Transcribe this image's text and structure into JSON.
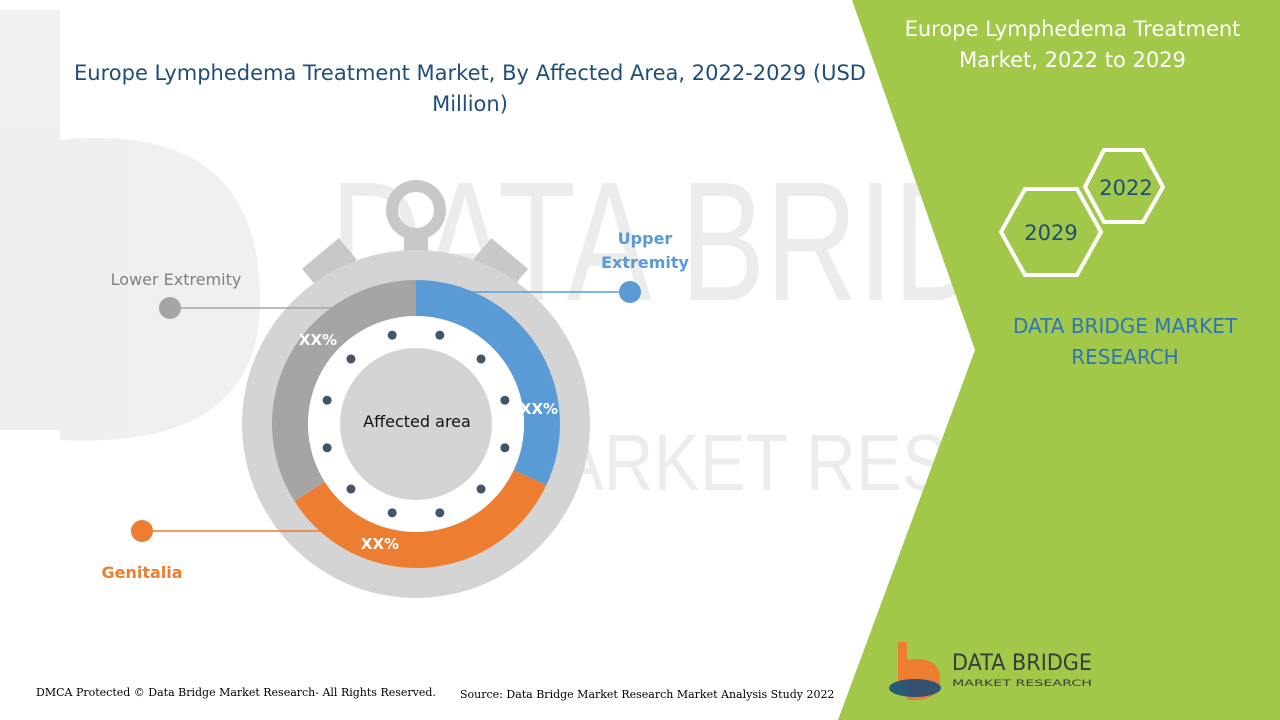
{
  "chart_data": {
    "type": "pie",
    "title": "Europe Lymphedema Treatment Market, By Affected Area, 2022-2029 (USD Million)",
    "center_label": "Affected area",
    "categories": [
      "Upper Extremity",
      "Genitalia",
      "Lower Extremity"
    ],
    "values": [
      32,
      34,
      34
    ],
    "data_labels": [
      "XX%",
      "XX%",
      "XX%"
    ],
    "colors": [
      "#5b9bd5",
      "#ed7d31",
      "#a5a5a5"
    ]
  },
  "panel": {
    "title": "Europe Lymphedema Treatment Market, 2022 to 2029",
    "year_start": "2022",
    "year_end": "2029",
    "brand": "DATA BRIDGE MARKET RESEARCH",
    "accent": "#a2c84a"
  },
  "logo": {
    "name": "DATA BRIDGE",
    "tagline": "MARKET RESEARCH"
  },
  "watermark": {
    "line1": "DATA BRIDGE",
    "line2": "MARKET RESEARCH"
  },
  "footer": {
    "copyright": "DMCA Protected © Data Bridge Market Research- All Rights Reserved.",
    "source": "Source: Data Bridge Market Research Market Analysis Study 2022"
  }
}
